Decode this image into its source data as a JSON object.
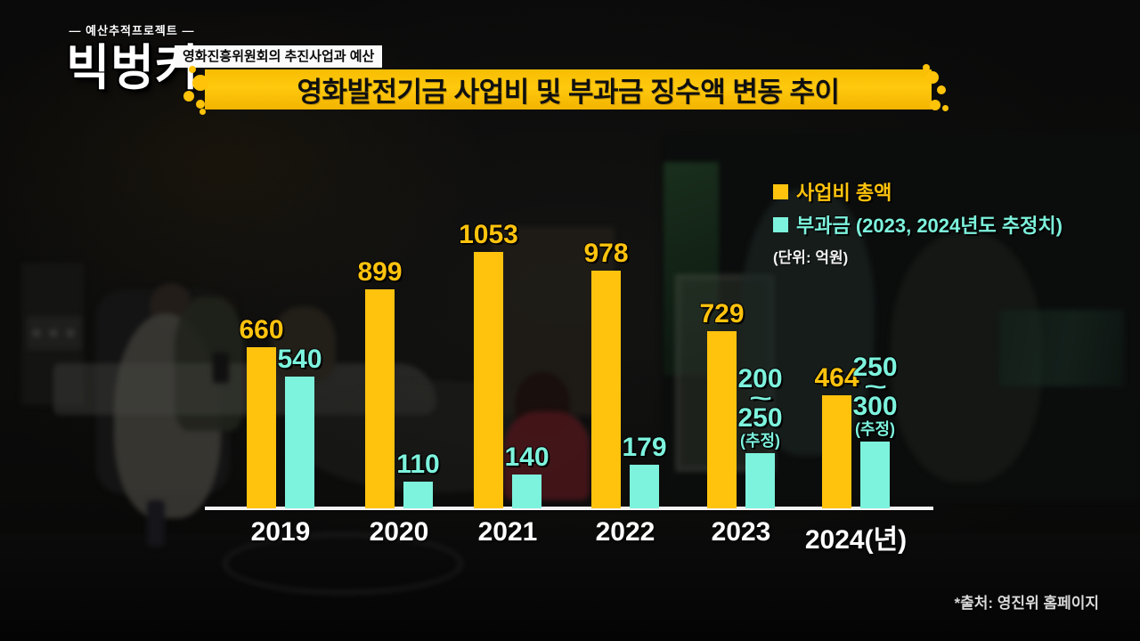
{
  "program": {
    "kicker": "— 예산추적프로젝트 —",
    "logo": "빅벙커",
    "strap": "영화진흥위원회의 추진사업과 예산",
    "title": "영화발전기금 사업비 및 부과금 징수액 변동 추이",
    "source": "*출처: 영진위 홈페이지"
  },
  "legend": {
    "series1_label": "사업비 총액",
    "series2_label": "부과금 (2023, 2024년도 추정치)",
    "unit_label": "(단위: 억원)"
  },
  "colors": {
    "yellow": "#ffc30d",
    "cyan": "#7df3dd",
    "banner": "#ffc30a",
    "axis": "#f4f4f4",
    "year_text": "#ffffff"
  },
  "chart_data": {
    "type": "bar",
    "title": "영화발전기금 사업비 및 부과금 징수액 변동 추이",
    "unit": "억원",
    "categories": [
      "2019",
      "2020",
      "2021",
      "2022",
      "2023",
      "2024(년)"
    ],
    "series": [
      {
        "name": "사업비 총액",
        "color": "#ffc30d",
        "values": [
          660,
          899,
          1053,
          978,
          729,
          464
        ],
        "labels": [
          [
            "660"
          ],
          [
            "899"
          ],
          [
            "1053"
          ],
          [
            "978"
          ],
          [
            "729"
          ],
          [
            "464"
          ]
        ]
      },
      {
        "name": "부과금",
        "note": "2023, 2024년도 추정치",
        "color": "#7df3dd",
        "values": [
          540,
          110,
          140,
          179,
          225,
          275
        ],
        "estimated": [
          false,
          false,
          false,
          false,
          true,
          true
        ],
        "ranges": [
          null,
          null,
          null,
          null,
          "200~250",
          "250~300"
        ],
        "labels": [
          [
            "540"
          ],
          [
            "110"
          ],
          [
            "140"
          ],
          [
            "179"
          ],
          [
            "200",
            "~",
            "250",
            "(추정)"
          ],
          [
            "250",
            "~",
            "300",
            "(추정)"
          ]
        ]
      }
    ],
    "ylim": [
      0,
      1100
    ],
    "grid": false,
    "legend_position": "top-right",
    "baseline": "white axis line"
  }
}
